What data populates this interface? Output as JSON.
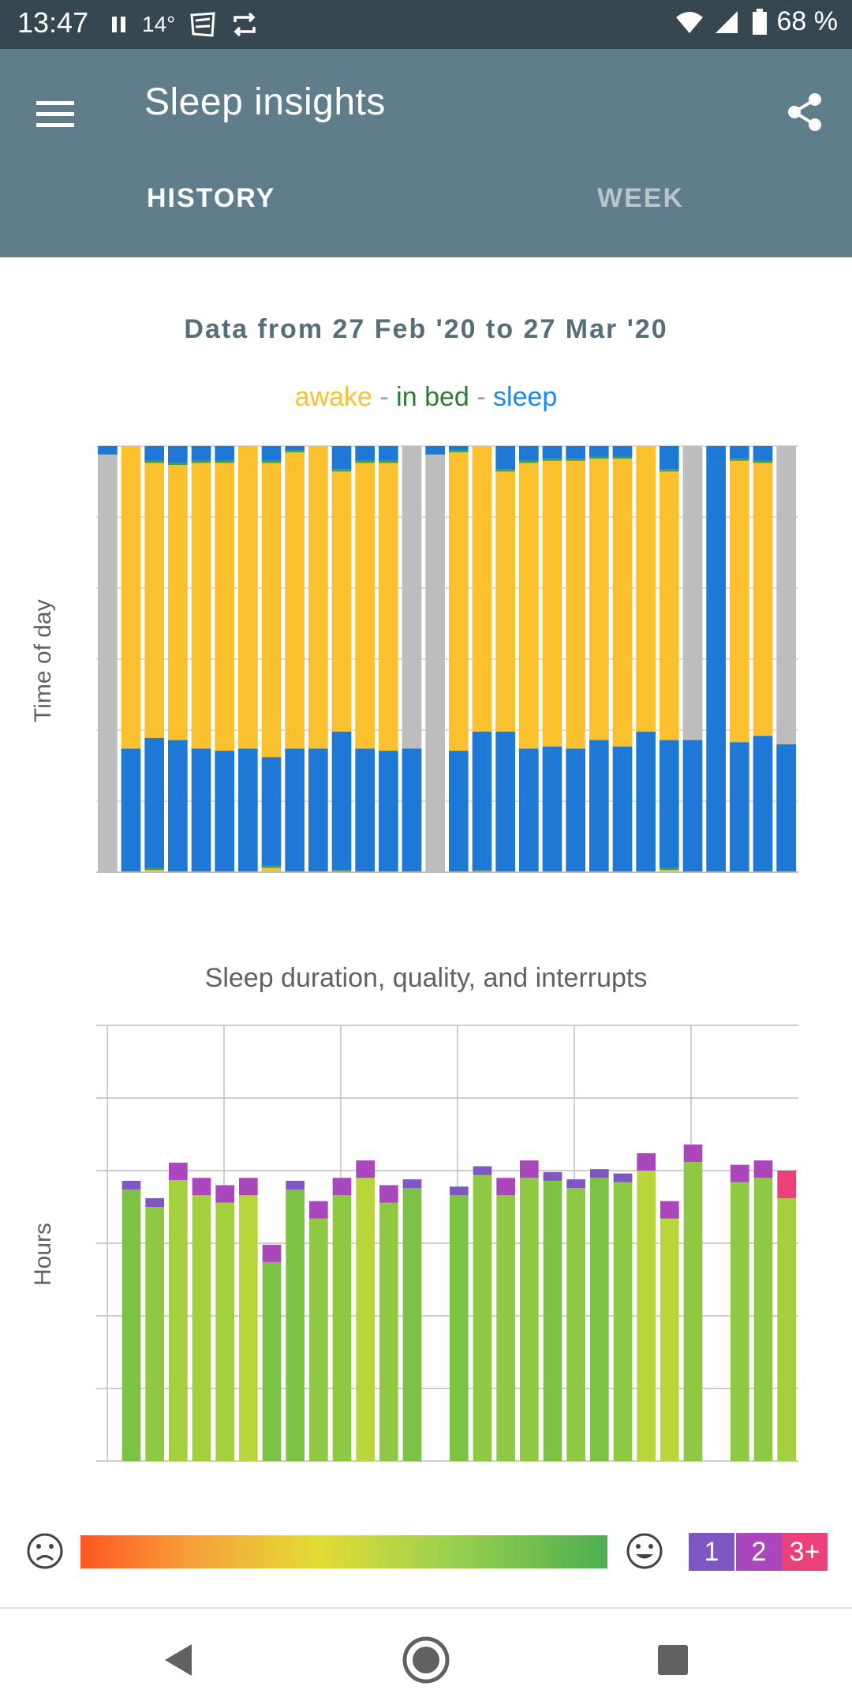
{
  "status_bar": {
    "time": "13:47",
    "temperature": "14°",
    "battery": "68 %",
    "icons": [
      "pause-icon",
      "weather-icon",
      "sync-icon",
      "wifi-icon",
      "signal-icon",
      "battery-icon"
    ]
  },
  "app_bar": {
    "title": "Sleep insights",
    "menu_icon": "menu-icon",
    "share_icon": "share-icon",
    "tabs": [
      {
        "label": "HISTORY",
        "selected": true
      },
      {
        "label": "WEEK",
        "selected": false
      }
    ],
    "color": "#607d8b"
  },
  "range_text": "Data from 27 Feb '20 to 27 Mar '20",
  "legend": {
    "awake": "awake",
    "sep1": " - ",
    "in_bed": "in bed",
    "sep2": " - ",
    "sleep": "sleep"
  },
  "colors": {
    "awake": "#fbc02d",
    "in_bed": "#43a047",
    "sleep": "#1e78d6",
    "no_data": "#bdbdbd",
    "interrupts_1": "#7e57c2",
    "interrupts_2": "#ab47bc",
    "interrupts_3plus": "#ec407a"
  },
  "chart_data": [
    {
      "type": "bar",
      "title": "",
      "ylabel": "Time of day",
      "xlabel": "",
      "stacked": true,
      "note_units": "fraction of day height measured from the top",
      "days": [
        {
          "no_data": true
        },
        {
          "sleep_top": 0.0,
          "sleep_top_end": 0.0,
          "awake_end": 0.71,
          "sleep_end": 1.0
        },
        {
          "sleep_top_end": 0.035,
          "inbed_top_end": 0.04,
          "awake_end": 0.685,
          "sleep_end": 0.99,
          "inbed_end": 0.995
        },
        {
          "sleep_top_end": 0.04,
          "inbed_top_end": 0.045,
          "awake_end": 0.69,
          "sleep_end": 1.0
        },
        {
          "sleep_top_end": 0.035,
          "inbed_top_end": 0.04,
          "awake_end": 0.71,
          "sleep_end": 1.0
        },
        {
          "sleep_top_end": 0.035,
          "inbed_top_end": 0.04,
          "awake_end": 0.715,
          "sleep_end": 1.0
        },
        {
          "sleep_top_end": 0.0,
          "inbed_top_end": 0.0,
          "awake_end": 0.71,
          "sleep_end": 1.0
        },
        {
          "sleep_top_end": 0.035,
          "inbed_top_end": 0.04,
          "awake_end": 0.73,
          "sleep_end": 0.985,
          "inbed_end": 0.99
        },
        {
          "sleep_top_end": 0.01,
          "inbed_top_end": 0.015,
          "awake_end": 0.71,
          "sleep_end": 1.0
        },
        {
          "sleep_top_end": 0.0,
          "inbed_top_end": 0.0,
          "awake_end": 0.71,
          "sleep_end": 1.0
        },
        {
          "sleep_top_end": 0.055,
          "inbed_top_end": 0.06,
          "awake_end": 0.67,
          "sleep_end": 0.995,
          "inbed_end": 1.0
        },
        {
          "sleep_top_end": 0.035,
          "inbed_top_end": 0.04,
          "awake_end": 0.71,
          "sleep_end": 1.0
        },
        {
          "sleep_top_end": 0.035,
          "inbed_top_end": 0.04,
          "awake_end": 0.715,
          "sleep_end": 1.0
        },
        {
          "no_data": true,
          "sleep_from": 0.71
        },
        {
          "no_data": true
        },
        {
          "sleep_top_end": 0.01,
          "inbed_top_end": 0.015,
          "awake_end": 0.715,
          "sleep_end": 1.0
        },
        {
          "sleep_top_end": 0.0,
          "inbed_top_end": 0.0,
          "awake_end": 0.67,
          "sleep_end": 0.995,
          "inbed_end": 1.0
        },
        {
          "sleep_top_end": 0.055,
          "inbed_top_end": 0.06,
          "awake_end": 0.67,
          "sleep_end": 1.0
        },
        {
          "sleep_top_end": 0.035,
          "inbed_top_end": 0.04,
          "awake_end": 0.71,
          "sleep_end": 1.0
        },
        {
          "sleep_top_end": 0.03,
          "inbed_top_end": 0.035,
          "awake_end": 0.705,
          "sleep_end": 1.0
        },
        {
          "sleep_top_end": 0.03,
          "inbed_top_end": 0.035,
          "awake_end": 0.71,
          "sleep_end": 1.0
        },
        {
          "sleep_top_end": 0.025,
          "inbed_top_end": 0.03,
          "awake_end": 0.69,
          "sleep_end": 1.0
        },
        {
          "sleep_top_end": 0.025,
          "inbed_top_end": 0.03,
          "awake_end": 0.705,
          "sleep_end": 1.0
        },
        {
          "sleep_top_end": 0.0,
          "inbed_top_end": 0.0,
          "awake_end": 0.67,
          "sleep_end": 1.0
        },
        {
          "sleep_top_end": 0.055,
          "inbed_top_end": 0.06,
          "awake_end": 0.69,
          "sleep_end": 0.99,
          "inbed_end": 0.995
        },
        {
          "no_data": true,
          "sleep_from": 0.69
        },
        {
          "no_data": true,
          "sleep_top_end": 0.04,
          "sleep_from": 0.04
        },
        {
          "sleep_top_end": 0.03,
          "inbed_top_end": 0.035,
          "awake_end": 0.695,
          "sleep_end": 1.0
        },
        {
          "sleep_top_end": 0.035,
          "inbed_top_end": 0.04,
          "awake_end": 0.68,
          "sleep_end": 1.0
        },
        {
          "no_data": true,
          "sleep_from": 0.7
        }
      ]
    },
    {
      "type": "bar",
      "title": "Sleep duration, quality, and interrupts",
      "ylabel": "Hours",
      "xlabel": "",
      "stacked": true,
      "ylim": [
        0,
        6
      ],
      "grid": true,
      "note_units": "grid units (6 horizontal grid divisions, no tick labels)",
      "sleep": [
        0,
        3.74,
        3.5,
        3.87,
        3.66,
        3.56,
        3.66,
        2.74,
        3.74,
        3.34,
        3.66,
        3.9,
        3.56,
        3.76,
        0,
        3.66,
        3.94,
        3.66,
        3.9,
        3.86,
        3.76,
        3.9,
        3.84,
        4.0,
        3.34,
        4.12,
        0,
        3.84,
        3.9,
        3.62
      ],
      "interrupts": [
        0,
        0.12,
        0.12,
        0.24,
        0.24,
        0.24,
        0.24,
        0.24,
        0.12,
        0.24,
        0.24,
        0.24,
        0.24,
        0.12,
        0,
        0.12,
        0.12,
        0.24,
        0.24,
        0.12,
        0.12,
        0.12,
        0.12,
        0.24,
        0.24,
        0.24,
        0,
        0.24,
        0.24,
        0.38
      ],
      "interrupt_level": [
        0,
        1,
        1,
        2,
        2,
        2,
        2,
        2,
        1,
        2,
        2,
        2,
        2,
        1,
        0,
        1,
        1,
        2,
        2,
        1,
        1,
        1,
        1,
        2,
        2,
        2,
        0,
        2,
        2,
        3
      ],
      "quality": [
        0,
        0.85,
        0.8,
        0.75,
        0.75,
        0.75,
        0.7,
        0.85,
        0.85,
        0.8,
        0.8,
        0.7,
        0.8,
        0.85,
        0,
        0.85,
        0.8,
        0.8,
        0.8,
        0.85,
        0.8,
        0.85,
        0.8,
        0.7,
        0.7,
        0.8,
        0,
        0.8,
        0.8,
        0.75
      ]
    }
  ],
  "quality_legend": {
    "sad_icon": "sad-face-icon",
    "happy_icon": "happy-face-icon",
    "interrupts": [
      "1",
      "2",
      "3+"
    ]
  },
  "nav_bar": {
    "icons": [
      "back-icon",
      "home-icon",
      "recents-icon"
    ]
  }
}
